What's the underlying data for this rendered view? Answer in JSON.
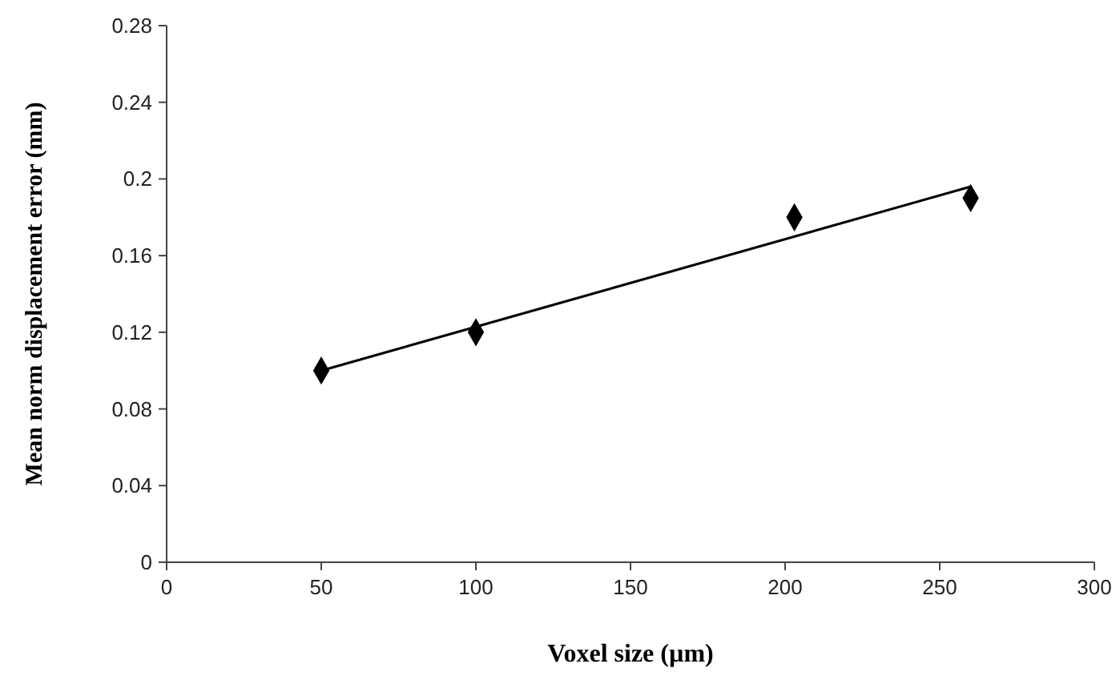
{
  "chart_data": {
    "type": "scatter",
    "xlabel": "Voxel size (µm)",
    "ylabel": "Mean norm displacement error (mm)",
    "series": [
      {
        "color": "#000000",
        "marker": "diamond",
        "x": [
          50,
          100,
          203,
          260
        ],
        "values": [
          0.1,
          0.12,
          0.18,
          0.19
        ]
      },
      {
        "type": "line",
        "color": "#000000",
        "marker": "none",
        "x": [
          50,
          260
        ],
        "values": [
          0.1,
          0.196
        ]
      }
    ],
    "xlim": [
      0,
      300
    ],
    "xticks": [
      0,
      50,
      100,
      150,
      200,
      250,
      300
    ],
    "ylim": [
      0,
      0.28
    ],
    "yticks": [
      0,
      0.04,
      0.08,
      0.12,
      0.16,
      0.2,
      0.24,
      0.28
    ],
    "grid": false
  }
}
